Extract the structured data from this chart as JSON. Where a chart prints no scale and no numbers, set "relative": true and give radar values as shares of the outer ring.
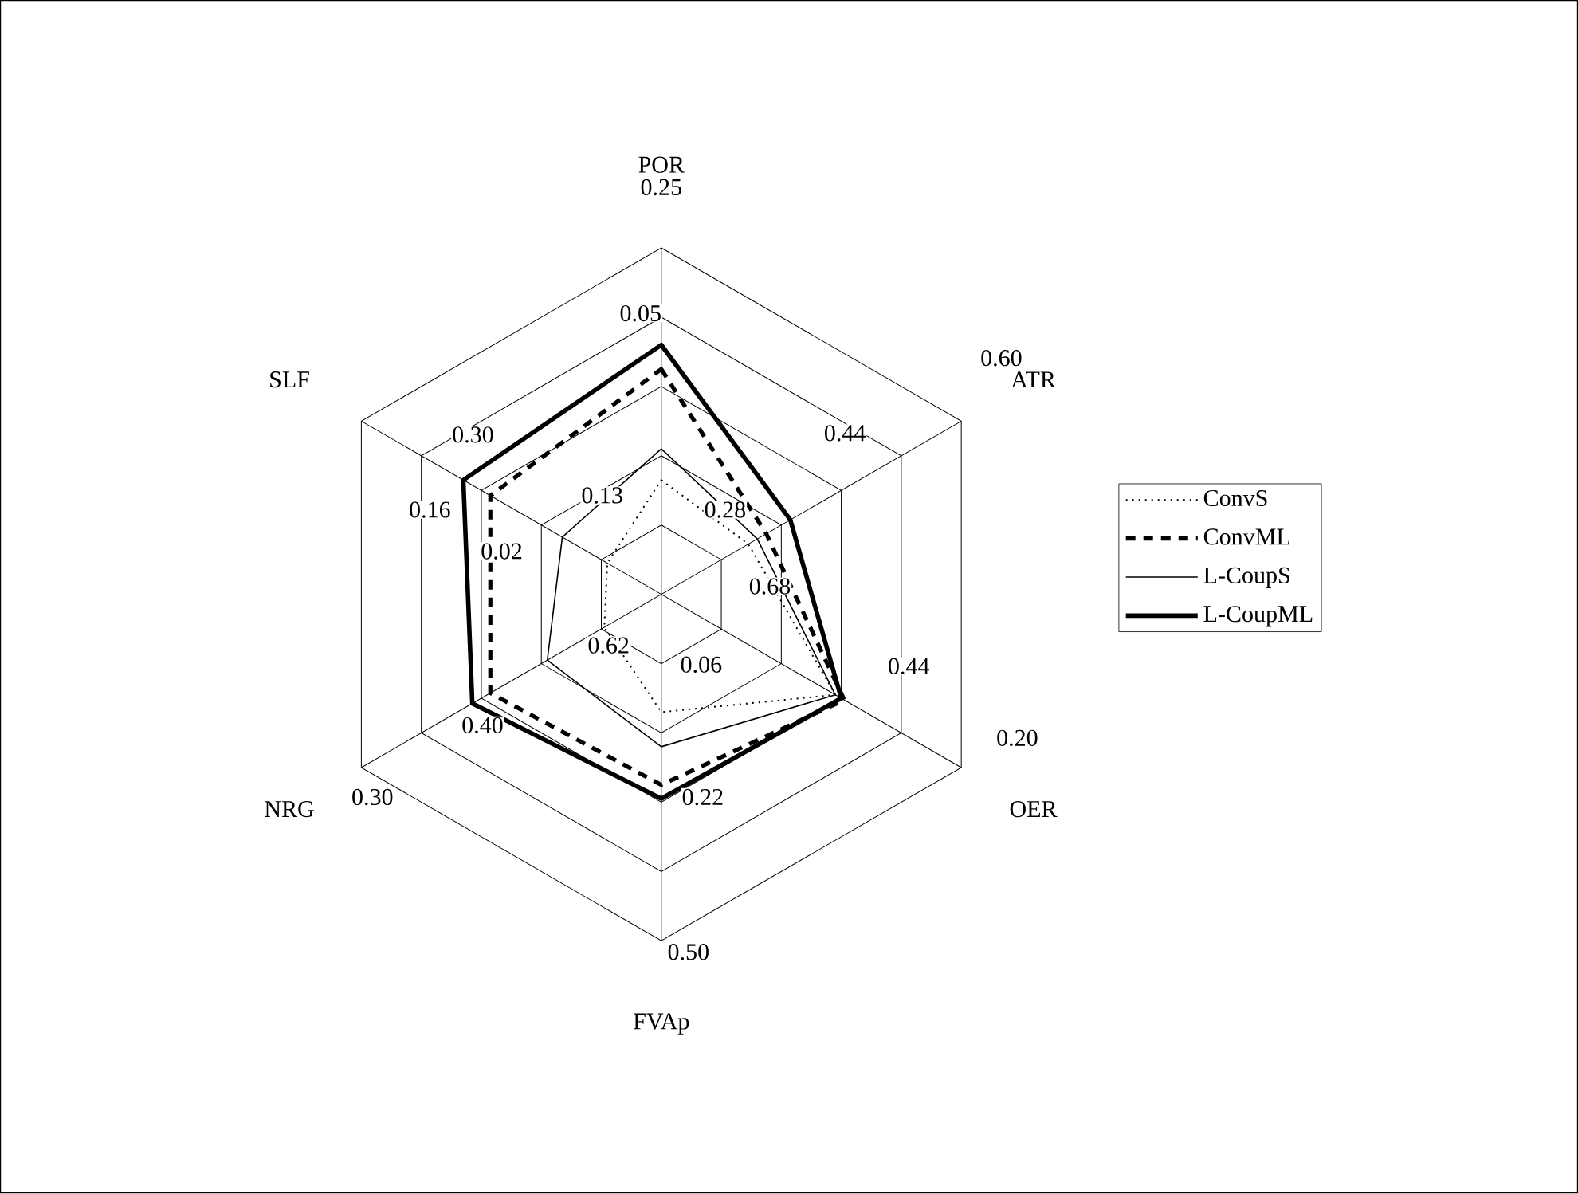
{
  "chart_data": {
    "type": "radar",
    "relative": true,
    "grid": true,
    "legend": "right",
    "marker": "none",
    "categories": [
      "POR",
      "ATR",
      "OER",
      "FVAp",
      "NRG",
      "SLF"
    ],
    "series": [
      {
        "name": "ConvS",
        "color": "#000000",
        "line_style": "dotted",
        "values": [
          0.33,
          0.29,
          0.58,
          0.34,
          0.19,
          0.18
        ]
      },
      {
        "name": "ConvML",
        "color": "#000000",
        "line_style": "dashed",
        "values": [
          0.65,
          0.35,
          0.61,
          0.55,
          0.57,
          0.57
        ]
      },
      {
        "name": "L-CoupS",
        "color": "#000000",
        "line_style": "solid",
        "values": [
          0.42,
          0.32,
          0.58,
          0.44,
          0.38,
          0.33
        ]
      },
      {
        "name": "L-CoupML",
        "color": "#000000",
        "line_style": "solid",
        "values": [
          0.72,
          0.43,
          0.6,
          0.59,
          0.63,
          0.66
        ]
      }
    ],
    "annotations": [
      "0.25",
      "0.05",
      "0.13",
      "0.60",
      "0.44",
      "0.28",
      "0.68",
      "0.44",
      "0.20",
      "0.50",
      "0.22",
      "0.06",
      "0.30",
      "0.40",
      "0.62",
      "0.30",
      "0.16",
      "0.02"
    ]
  }
}
